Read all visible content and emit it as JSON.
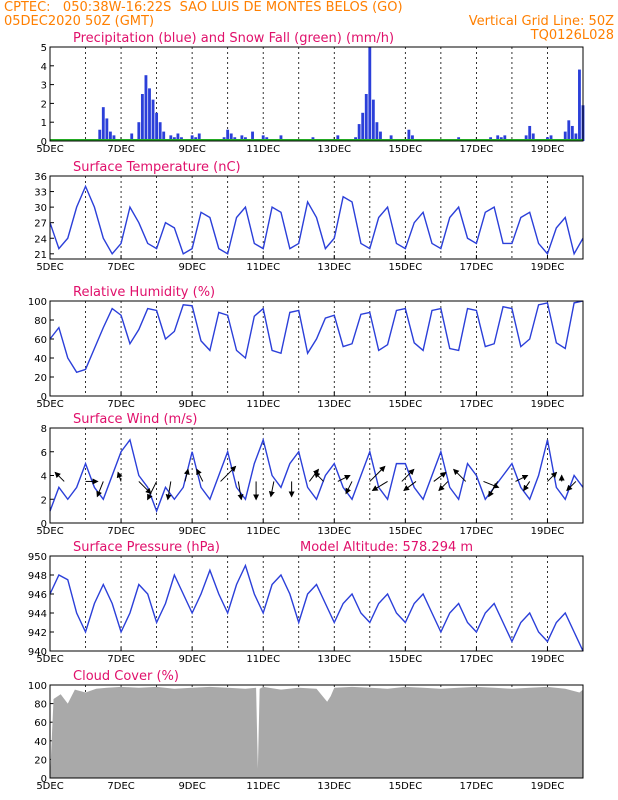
{
  "header": {
    "line1_left": "CPTEC:   050:38W-16:22S  SAO LUIS DE MONTES BELOS (GO)",
    "line2_left": "05DEC2020 50Z (GMT)",
    "line2_right": "Vertical Grid Line: 50Z",
    "line3_right": "TQ0126L028"
  },
  "colors": {
    "header": "#ff7f00",
    "title": "#e0106b",
    "series": "#2b3fd9",
    "snow": "#22aa22",
    "cloud": "#a9a9a9",
    "arrow": "#000000"
  },
  "chart_data": [
    {
      "type": "bar",
      "title": "Precipitation (blue) and Snow Fall (green) (mm/h)",
      "x_tick_labels": [
        "5DEC",
        "7DEC",
        "9DEC",
        "11DEC",
        "13DEC",
        "15DEC",
        "17DEC",
        "19DEC"
      ],
      "x_range_days": [
        0,
        15
      ],
      "ylim": [
        0,
        5
      ],
      "y_ticks": [
        0,
        1,
        2,
        3,
        4,
        5
      ],
      "y_tick_labels": [
        "0",
        "1",
        "2",
        "3",
        "4",
        "5"
      ],
      "series": [
        {
          "name": "precipitation",
          "color": "#2b3fd9",
          "x_days": [
            1.4,
            1.5,
            1.6,
            1.7,
            1.8,
            2.3,
            2.5,
            2.6,
            2.7,
            2.8,
            2.9,
            3.0,
            3.1,
            3.2,
            3.4,
            3.5,
            3.6,
            3.7,
            3.9,
            4.0,
            4.1,
            4.2,
            4.9,
            5.0,
            5.1,
            5.2,
            5.3,
            5.4,
            5.5,
            5.7,
            5.9,
            6.0,
            6.1,
            6.5,
            7.2,
            7.3,
            7.4,
            8.0,
            8.1,
            8.6,
            8.7,
            8.8,
            8.9,
            9.0,
            9.1,
            9.2,
            9.3,
            9.6,
            10.1,
            10.2,
            10.9,
            11.5,
            12.1,
            12.4,
            12.5,
            12.6,
            12.7,
            12.8,
            13.4,
            13.5,
            13.6,
            14.0,
            14.1,
            14.5,
            14.6,
            14.7,
            14.8,
            14.9,
            15.0
          ],
          "values": [
            0.6,
            1.8,
            1.2,
            0.5,
            0.3,
            0.4,
            1.0,
            2.5,
            3.5,
            2.8,
            2.2,
            1.5,
            1.0,
            0.5,
            0.3,
            0.2,
            0.4,
            0.2,
            0.1,
            0.3,
            0.2,
            0.4,
            0.2,
            0.6,
            0.4,
            0.2,
            0.1,
            0.3,
            0.2,
            0.5,
            0.1,
            0.3,
            0.2,
            0.3,
            0.1,
            0.1,
            0.2,
            0.1,
            0.3,
            0.2,
            0.9,
            1.5,
            2.5,
            5.0,
            2.2,
            1.0,
            0.5,
            0.3,
            0.6,
            0.3,
            0.1,
            0.2,
            0.1,
            0.2,
            0.1,
            0.3,
            0.2,
            0.3,
            0.3,
            0.8,
            0.4,
            0.2,
            0.3,
            0.5,
            1.1,
            0.8,
            0.4,
            3.8,
            1.9
          ]
        },
        {
          "name": "snow fall",
          "color": "#22aa22",
          "x_days": [
            0,
            15
          ],
          "values": [
            0,
            0
          ]
        }
      ]
    },
    {
      "type": "line",
      "title": "Surface Temperature (nC)",
      "x_tick_labels": [
        "5DEC",
        "7DEC",
        "9DEC",
        "11DEC",
        "13DEC",
        "15DEC",
        "17DEC",
        "19DEC"
      ],
      "x_range_days": [
        0,
        15
      ],
      "ylim": [
        20,
        36
      ],
      "y_ticks": [
        21,
        24,
        27,
        30,
        33,
        36
      ],
      "y_tick_labels": [
        "21",
        "24",
        "27",
        "30",
        "33",
        "36"
      ],
      "series": [
        {
          "name": "temperature",
          "color": "#2b3fd9",
          "x_days": [
            0,
            0.25,
            0.5,
            0.75,
            1,
            1.25,
            1.5,
            1.75,
            2,
            2.25,
            2.5,
            2.75,
            3,
            3.25,
            3.5,
            3.75,
            4,
            4.25,
            4.5,
            4.75,
            5,
            5.25,
            5.5,
            5.75,
            6,
            6.25,
            6.5,
            6.75,
            7,
            7.25,
            7.5,
            7.75,
            8,
            8.25,
            8.5,
            8.75,
            9,
            9.25,
            9.5,
            9.75,
            10,
            10.25,
            10.5,
            10.75,
            11,
            11.25,
            11.5,
            11.75,
            12,
            12.25,
            12.5,
            12.75,
            13,
            13.25,
            13.5,
            13.75,
            14,
            14.25,
            14.5,
            14.75,
            15
          ],
          "values": [
            27,
            22,
            24,
            30,
            34,
            30,
            24,
            21,
            23,
            30,
            27,
            23,
            22,
            27,
            26,
            21,
            22,
            29,
            28,
            22,
            21,
            28,
            30,
            23,
            22,
            30,
            29,
            22,
            23,
            31,
            28,
            22,
            24,
            32,
            31,
            23,
            22,
            28,
            30,
            23,
            22,
            27,
            29,
            23,
            22,
            28,
            30,
            24,
            23,
            29,
            30,
            23,
            23,
            28,
            29,
            23,
            21,
            26,
            28,
            21,
            24
          ]
        }
      ]
    },
    {
      "type": "line",
      "title": "Relative Humidity (%)",
      "x_tick_labels": [
        "5DEC",
        "7DEC",
        "9DEC",
        "11DEC",
        "13DEC",
        "15DEC",
        "17DEC",
        "19DEC"
      ],
      "x_range_days": [
        0,
        15
      ],
      "ylim": [
        0,
        100
      ],
      "y_ticks": [
        0,
        20,
        40,
        60,
        80,
        100
      ],
      "y_tick_labels": [
        "0",
        "20",
        "40",
        "60",
        "80",
        "100"
      ],
      "series": [
        {
          "name": "humidity",
          "color": "#2b3fd9",
          "x_days": [
            0,
            0.25,
            0.5,
            0.75,
            1,
            1.25,
            1.5,
            1.75,
            2,
            2.25,
            2.5,
            2.75,
            3,
            3.25,
            3.5,
            3.75,
            4,
            4.25,
            4.5,
            4.75,
            5,
            5.25,
            5.5,
            5.75,
            6,
            6.25,
            6.5,
            6.75,
            7,
            7.25,
            7.5,
            7.75,
            8,
            8.25,
            8.5,
            8.75,
            9,
            9.25,
            9.5,
            9.75,
            10,
            10.25,
            10.5,
            10.75,
            11,
            11.25,
            11.5,
            11.75,
            12,
            12.25,
            12.5,
            12.75,
            13,
            13.25,
            13.5,
            13.75,
            14,
            14.25,
            14.5,
            14.75,
            15
          ],
          "values": [
            60,
            72,
            40,
            25,
            28,
            50,
            72,
            92,
            85,
            55,
            70,
            92,
            90,
            60,
            68,
            96,
            95,
            58,
            48,
            88,
            85,
            48,
            40,
            84,
            92,
            48,
            45,
            88,
            90,
            45,
            60,
            82,
            85,
            52,
            55,
            86,
            88,
            48,
            54,
            90,
            92,
            56,
            48,
            90,
            92,
            50,
            48,
            92,
            90,
            52,
            55,
            94,
            92,
            52,
            60,
            96,
            98,
            56,
            50,
            98,
            100
          ]
        }
      ]
    },
    {
      "type": "line",
      "title": "Surface Wind (m/s)",
      "x_tick_labels": [
        "5DEC",
        "7DEC",
        "9DEC",
        "11DEC",
        "13DEC",
        "15DEC",
        "17DEC",
        "19DEC"
      ],
      "x_range_days": [
        0,
        15
      ],
      "ylim": [
        0,
        8
      ],
      "y_ticks": [
        0,
        2,
        4,
        6,
        8
      ],
      "y_tick_labels": [
        "0",
        "2",
        "4",
        "6",
        "8"
      ],
      "series": [
        {
          "name": "wind speed",
          "color": "#2b3fd9",
          "x_days": [
            0,
            0.25,
            0.5,
            0.75,
            1,
            1.25,
            1.5,
            1.75,
            2,
            2.25,
            2.5,
            2.75,
            3,
            3.25,
            3.5,
            3.75,
            4,
            4.25,
            4.5,
            4.75,
            5,
            5.25,
            5.5,
            5.75,
            6,
            6.25,
            6.5,
            6.75,
            7,
            7.25,
            7.5,
            7.75,
            8,
            8.25,
            8.5,
            8.75,
            9,
            9.25,
            9.5,
            9.75,
            10,
            10.25,
            10.5,
            10.75,
            11,
            11.25,
            11.5,
            11.75,
            12,
            12.25,
            12.5,
            12.75,
            13,
            13.25,
            13.5,
            13.75,
            14,
            14.25,
            14.5,
            14.75,
            15
          ],
          "values": [
            1,
            3,
            2,
            3,
            5,
            3,
            2,
            4,
            6,
            7,
            4,
            3,
            1,
            3,
            2,
            3,
            6,
            3,
            2,
            4,
            6,
            3,
            2,
            5,
            7,
            4,
            3,
            5,
            6,
            3,
            2,
            4,
            5,
            3,
            2,
            4,
            6,
            3,
            2,
            5,
            5,
            3,
            2,
            4,
            6,
            3,
            2,
            5,
            4,
            2,
            3,
            4,
            5,
            3,
            2,
            4,
            7,
            3,
            2,
            4,
            3
          ]
        }
      ],
      "wind_arrows": {
        "x_days": [
          0.4,
          1.0,
          1.5,
          2.0,
          2.5,
          3.0,
          3.4,
          3.8,
          4.3,
          4.8,
          5.3,
          5.8,
          6.3,
          6.8,
          7.3,
          7.7,
          8.1,
          8.5,
          9.0,
          9.5,
          9.9,
          10.3,
          10.8,
          11.2,
          11.7,
          12.2,
          12.6,
          13.1,
          13.5,
          14.0,
          14.4,
          14.8
        ],
        "u_ms": [
          -1.5,
          2,
          -1,
          -0.5,
          2,
          -1.5,
          -0.5,
          0.5,
          -1,
          2.5,
          0.5,
          0,
          -0.5,
          0,
          1.5,
          -1.5,
          2,
          -1,
          2.5,
          -2.5,
          2,
          -2,
          2,
          -1.5,
          -2,
          2.5,
          -1.5,
          2,
          -1,
          1.5,
          0,
          -1.5
        ],
        "v_ms": [
          1.5,
          0,
          -2.5,
          1.5,
          -2,
          -3,
          -3,
          2,
          2,
          2.5,
          -3,
          -3,
          -2.5,
          -2.5,
          2,
          1.5,
          1,
          -2,
          2.5,
          -1.5,
          2,
          -1.5,
          1.5,
          -1.5,
          2,
          -1,
          -2.5,
          1,
          -1.5,
          1.5,
          1,
          -1.5
        ]
      }
    },
    {
      "type": "line",
      "title": "Surface Pressure (hPa)",
      "annotation": "Model Altitude: 578.294 m",
      "x_tick_labels": [
        "5DEC",
        "7DEC",
        "9DEC",
        "11DEC",
        "13DEC",
        "15DEC",
        "17DEC",
        "19DEC"
      ],
      "x_range_days": [
        0,
        15
      ],
      "ylim": [
        940,
        950
      ],
      "y_ticks": [
        940,
        942,
        944,
        946,
        948,
        950
      ],
      "y_tick_labels": [
        "940",
        "942",
        "944",
        "946",
        "948",
        "950"
      ],
      "series": [
        {
          "name": "pressure",
          "color": "#2b3fd9",
          "x_days": [
            0,
            0.25,
            0.5,
            0.75,
            1,
            1.25,
            1.5,
            1.75,
            2,
            2.25,
            2.5,
            2.75,
            3,
            3.25,
            3.5,
            3.75,
            4,
            4.25,
            4.5,
            4.75,
            5,
            5.25,
            5.5,
            5.75,
            6,
            6.25,
            6.5,
            6.75,
            7,
            7.25,
            7.5,
            7.75,
            8,
            8.25,
            8.5,
            8.75,
            9,
            9.25,
            9.5,
            9.75,
            10,
            10.25,
            10.5,
            10.75,
            11,
            11.25,
            11.5,
            11.75,
            12,
            12.25,
            12.5,
            12.75,
            13,
            13.25,
            13.5,
            13.75,
            14,
            14.25,
            14.5,
            14.75,
            15
          ],
          "values": [
            946,
            948,
            947.5,
            944,
            942,
            945,
            947,
            945,
            942,
            944,
            947,
            946,
            943,
            945,
            948,
            946,
            944,
            946,
            948.5,
            946,
            944,
            947,
            949,
            946,
            944,
            947,
            948,
            946,
            943,
            946,
            947,
            945,
            943,
            945,
            946,
            944,
            943,
            945,
            946,
            944,
            943,
            945,
            946,
            944,
            942,
            944,
            945,
            943,
            942,
            944,
            945,
            943,
            941,
            943,
            944,
            942,
            941,
            943,
            944,
            942,
            940
          ]
        }
      ]
    },
    {
      "type": "area",
      "title": "Cloud Cover (%)",
      "x_tick_labels": [
        "5DEC",
        "7DEC",
        "9DEC",
        "11DEC",
        "13DEC",
        "15DEC",
        "17DEC",
        "19DEC"
      ],
      "x_range_days": [
        0,
        15
      ],
      "ylim": [
        0,
        100
      ],
      "y_ticks": [
        0,
        20,
        40,
        60,
        80,
        100
      ],
      "y_tick_labels": [
        "0",
        "20",
        "40",
        "60",
        "80",
        "100"
      ],
      "series": [
        {
          "name": "cloud cover",
          "color": "#a9a9a9",
          "x_days": [
            0,
            0.1,
            0.3,
            0.5,
            0.7,
            1,
            1.3,
            1.6,
            2,
            2.5,
            3,
            3.5,
            4,
            4.5,
            5,
            5.5,
            5.8,
            5.85,
            5.9,
            6,
            6.5,
            7,
            7.5,
            7.8,
            7.9,
            8,
            8.5,
            9,
            9.5,
            10,
            10.5,
            11,
            11.5,
            12,
            12.5,
            13,
            13.5,
            14,
            14.5,
            14.9,
            15
          ],
          "values": [
            0,
            85,
            90,
            80,
            95,
            92,
            96,
            97,
            98,
            97,
            98,
            96,
            97,
            98,
            97,
            96,
            97,
            10,
            96,
            98,
            95,
            97,
            96,
            82,
            88,
            97,
            98,
            97,
            96,
            98,
            97,
            96,
            97,
            98,
            97,
            96,
            97,
            98,
            96,
            92,
            95
          ]
        }
      ]
    }
  ]
}
